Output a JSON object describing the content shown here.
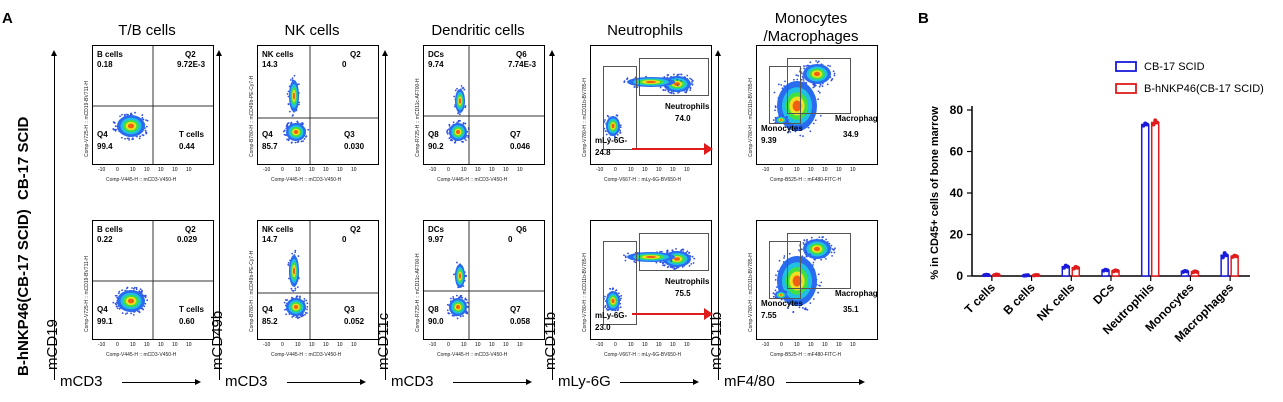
{
  "panel_a": {
    "letter": "A",
    "rows": [
      {
        "label": "CB-17 SCID"
      },
      {
        "label": "B-hNKP46(CB-17 SCID)"
      }
    ],
    "columns": [
      {
        "title": "T/B cells",
        "x_marker": "mCD3",
        "y_marker": "mCD19",
        "x_axis": "Comp-V445-H :: mCD3-V450-H",
        "y_axis": "Comp-V725-H :: mCD19-BV711-H",
        "plots": [
          {
            "gates": [
              {
                "name": "B cells",
                "value": "0.18"
              },
              {
                "name": "Q2",
                "value": "9.72E-3"
              },
              {
                "name": "Q4",
                "value": "99.4"
              },
              {
                "name": "T cells",
                "value": "0.44"
              }
            ]
          },
          {
            "gates": [
              {
                "name": "B cells",
                "value": "0.22"
              },
              {
                "name": "Q2",
                "value": "0.029"
              },
              {
                "name": "Q4",
                "value": "99.1"
              },
              {
                "name": "T cells",
                "value": "0.60"
              }
            ]
          }
        ]
      },
      {
        "title": "NK cells",
        "x_marker": "mCD3",
        "y_marker": "mCD49b",
        "x_axis": "Comp-V445-H :: mCD3-V450-H",
        "y_axis": "Comp-B780-H :: mCD49b-PE-Cy7-H",
        "plots": [
          {
            "gates": [
              {
                "name": "NK cells",
                "value": "14.3"
              },
              {
                "name": "Q2",
                "value": "0"
              },
              {
                "name": "Q4",
                "value": "85.7"
              },
              {
                "name": "Q3",
                "value": "0.030"
              }
            ]
          },
          {
            "gates": [
              {
                "name": "NK cells",
                "value": "14.7"
              },
              {
                "name": "Q2",
                "value": "0"
              },
              {
                "name": "Q4",
                "value": "85.2"
              },
              {
                "name": "Q3",
                "value": "0.052"
              }
            ]
          }
        ]
      },
      {
        "title": "Dendritic cells",
        "x_marker": "mCD3",
        "y_marker": "mCD11c",
        "x_axis": "Comp-V445-H :: mCD3-V450-H",
        "y_axis": "Comp-R725-H :: mCD11c-AF700-H",
        "plots": [
          {
            "gates": [
              {
                "name": "DCs",
                "value": "9.74"
              },
              {
                "name": "Q6",
                "value": "7.74E-3"
              },
              {
                "name": "Q8",
                "value": "90.2"
              },
              {
                "name": "Q7",
                "value": "0.046"
              }
            ]
          },
          {
            "gates": [
              {
                "name": "DCs",
                "value": "9.97"
              },
              {
                "name": "Q6",
                "value": "0"
              },
              {
                "name": "Q8",
                "value": "90.0"
              },
              {
                "name": "Q7",
                "value": "0.058"
              }
            ]
          }
        ]
      },
      {
        "title": "Neutrophils",
        "x_marker": "mLy-6G",
        "y_marker": "mCD11b",
        "x_axis": "Comp-V667-H :: mLy-6G-BV650-H",
        "y_axis": "Comp-V780-H :: mCD11b-BV785-H",
        "plots": [
          {
            "gates": [
              {
                "name": "Neutrophils",
                "value": "74.0"
              },
              {
                "name": "mLy-6G-",
                "value": "24.8"
              }
            ]
          },
          {
            "gates": [
              {
                "name": "Neutrophils",
                "value": "75.5"
              },
              {
                "name": "mLy-6G-",
                "value": "23.0"
              }
            ]
          }
        ]
      },
      {
        "title": "Monocytes\n/Macrophages",
        "x_marker": "mF4/80",
        "y_marker": "mCD11b",
        "x_axis": "Comp-B525-H :: mF480-FITC-H",
        "y_axis": "Comp-V780-H :: mCD11b-BV785-H",
        "plots": [
          {
            "gates": [
              {
                "name": "Macrophages",
                "value": "34.9"
              },
              {
                "name": "Monocytes",
                "value": "9.39"
              }
            ]
          },
          {
            "gates": [
              {
                "name": "Macrophages",
                "value": "35.1"
              },
              {
                "name": "Monocytes",
                "value": "7.55"
              }
            ]
          }
        ]
      }
    ],
    "tick_labels": [
      "-10",
      "0",
      "10",
      "10",
      "10",
      "10",
      "10"
    ]
  },
  "panel_b": {
    "letter": "B",
    "chart_data": {
      "type": "bar",
      "categories": [
        "T cells",
        "B cells",
        "NK cells",
        "DCs",
        "Neutrophils",
        "Monocytes",
        "Macrophages"
      ],
      "series": [
        {
          "name": "CB-17 SCID",
          "color": "#1a1adb",
          "values": [
            0.5,
            0.3,
            4.5,
            2.8,
            73.0,
            2.2,
            10.0
          ],
          "points": [
            [
              0.4,
              0.6,
              0.5
            ],
            [
              0.2,
              0.3,
              0.4
            ],
            [
              4.0,
              5.0,
              4.5
            ],
            [
              2.6,
              3.0,
              2.8
            ],
            [
              72.5,
              73.5,
              73.0
            ],
            [
              2.0,
              2.4,
              2.2
            ],
            [
              9.0,
              11.0,
              10.0
            ]
          ]
        },
        {
          "name": "B-hNKP46(CB-17 SCID)",
          "color": "#e01b1b",
          "values": [
            0.6,
            0.4,
            4.0,
            2.5,
            74.0,
            2.0,
            9.5
          ],
          "points": [
            [
              0.5,
              0.7,
              0.6
            ],
            [
              0.3,
              0.5,
              0.4
            ],
            [
              3.6,
              4.4,
              4.0
            ],
            [
              2.3,
              2.7,
              2.5
            ],
            [
              73.0,
              75.0,
              74.0
            ],
            [
              1.8,
              2.2,
              2.0
            ],
            [
              9.2,
              9.8,
              9.5
            ]
          ]
        }
      ],
      "ylabel": "% in CD45+ cells of bone marrow",
      "ylim": [
        0,
        80
      ],
      "yticks": [
        0,
        20,
        40,
        60,
        80
      ],
      "legend_position": "top-right"
    }
  }
}
